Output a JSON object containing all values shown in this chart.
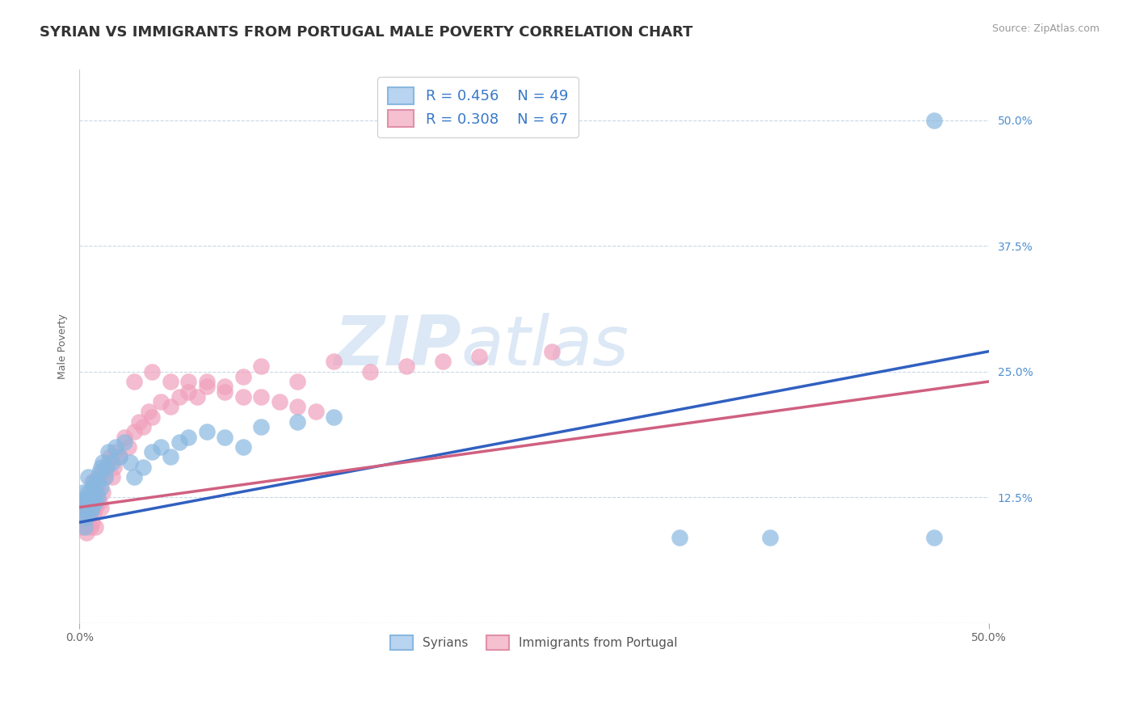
{
  "title": "SYRIAN VS IMMIGRANTS FROM PORTUGAL MALE POVERTY CORRELATION CHART",
  "source": "Source: ZipAtlas.com",
  "ylabel": "Male Poverty",
  "xlim": [
    0.0,
    0.5
  ],
  "ylim": [
    0.0,
    0.55
  ],
  "syrians_R": 0.456,
  "syrians_N": 49,
  "portugal_R": 0.308,
  "portugal_N": 67,
  "syrians_color": "#89b8e0",
  "portugal_color": "#f0a0bc",
  "trend_syrian_color": "#3060c0",
  "trend_portugal_color": "#d06080",
  "background_color": "#ffffff",
  "watermark_color": "#dce8f5",
  "ytick_color": "#5090d0",
  "title_color": "#333333",
  "source_color": "#999999",
  "legend_text_color": "#3878c8",
  "bottom_legend_color": "#555555",
  "title_fontsize": 13,
  "axis_label_fontsize": 9,
  "tick_label_fontsize": 10,
  "legend_fontsize": 13,
  "syrians_x": [
    0.001,
    0.002,
    0.002,
    0.003,
    0.003,
    0.004,
    0.004,
    0.005,
    0.005,
    0.005,
    0.006,
    0.006,
    0.007,
    0.007,
    0.008,
    0.008,
    0.009,
    0.009,
    0.01,
    0.01,
    0.011,
    0.012,
    0.012,
    0.013,
    0.014,
    0.015,
    0.016,
    0.018,
    0.02,
    0.022,
    0.025,
    0.028,
    0.03,
    0.035,
    0.04,
    0.045,
    0.05,
    0.055,
    0.06,
    0.07,
    0.08,
    0.09,
    0.1,
    0.12,
    0.14,
    0.33,
    0.38,
    0.47,
    0.47
  ],
  "syrians_y": [
    0.12,
    0.11,
    0.13,
    0.095,
    0.115,
    0.125,
    0.105,
    0.12,
    0.13,
    0.145,
    0.11,
    0.125,
    0.115,
    0.135,
    0.125,
    0.14,
    0.13,
    0.12,
    0.125,
    0.14,
    0.15,
    0.135,
    0.155,
    0.16,
    0.145,
    0.155,
    0.17,
    0.16,
    0.175,
    0.165,
    0.18,
    0.16,
    0.145,
    0.155,
    0.17,
    0.175,
    0.165,
    0.18,
    0.185,
    0.19,
    0.185,
    0.175,
    0.195,
    0.2,
    0.205,
    0.085,
    0.085,
    0.085,
    0.5
  ],
  "portugal_x": [
    0.001,
    0.001,
    0.002,
    0.002,
    0.003,
    0.003,
    0.004,
    0.004,
    0.005,
    0.005,
    0.006,
    0.006,
    0.007,
    0.007,
    0.007,
    0.008,
    0.008,
    0.009,
    0.009,
    0.01,
    0.01,
    0.011,
    0.012,
    0.013,
    0.013,
    0.014,
    0.015,
    0.016,
    0.017,
    0.018,
    0.019,
    0.02,
    0.022,
    0.025,
    0.027,
    0.03,
    0.033,
    0.035,
    0.038,
    0.04,
    0.045,
    0.05,
    0.055,
    0.06,
    0.065,
    0.07,
    0.08,
    0.09,
    0.1,
    0.12,
    0.14,
    0.16,
    0.18,
    0.2,
    0.22,
    0.26,
    0.03,
    0.04,
    0.05,
    0.06,
    0.07,
    0.08,
    0.09,
    0.1,
    0.11,
    0.12,
    0.13
  ],
  "portugal_y": [
    0.11,
    0.095,
    0.12,
    0.105,
    0.1,
    0.115,
    0.125,
    0.09,
    0.105,
    0.12,
    0.095,
    0.11,
    0.1,
    0.125,
    0.14,
    0.11,
    0.13,
    0.115,
    0.095,
    0.13,
    0.145,
    0.12,
    0.115,
    0.13,
    0.15,
    0.145,
    0.155,
    0.16,
    0.165,
    0.145,
    0.155,
    0.17,
    0.165,
    0.185,
    0.175,
    0.19,
    0.2,
    0.195,
    0.21,
    0.205,
    0.22,
    0.215,
    0.225,
    0.23,
    0.225,
    0.24,
    0.235,
    0.245,
    0.255,
    0.24,
    0.26,
    0.25,
    0.255,
    0.26,
    0.265,
    0.27,
    0.24,
    0.25,
    0.24,
    0.24,
    0.235,
    0.23,
    0.225,
    0.225,
    0.22,
    0.215,
    0.21
  ],
  "trend_syrian_start_y": 0.1,
  "trend_syrian_end_y": 0.27,
  "trend_portugal_start_y": 0.115,
  "trend_portugal_end_y": 0.24
}
